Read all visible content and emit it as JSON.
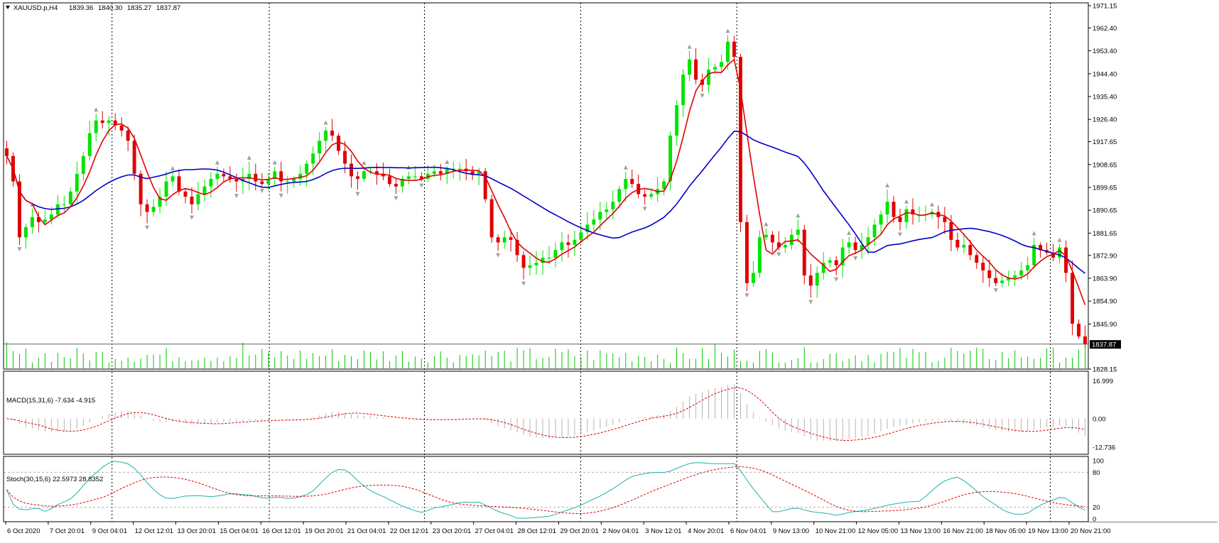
{
  "window": {
    "symbol_label": "XAUUSD.p,H4",
    "ohlc": [
      "1839.36",
      "1840.30",
      "1835.27",
      "1837.87"
    ],
    "current_price_label": "1837.87"
  },
  "colors": {
    "bull": "#00e400",
    "bear": "#e00000",
    "ma_fast": "#e00000",
    "ma_slow": "#0000c8",
    "volume": "#00c800",
    "macd_hist": "#b4b4b4",
    "macd_signal": "#e00000",
    "stoch_main": "#20b2aa",
    "stoch_signal": "#e00000",
    "fractal": "#a0a0a0",
    "grid": "#000000",
    "price_line": "#606060"
  },
  "chart_data": [
    {
      "type": "candlestick",
      "pane": "main",
      "ylim": [
        1828.15,
        1971.15
      ],
      "y_ticks": [
        "1971.15",
        "1962.40",
        "1953.40",
        "1944.40",
        "1935.40",
        "1926.40",
        "1917.65",
        "1908.65",
        "1899.65",
        "1890.65",
        "1881.65",
        "1872.90",
        "1863.90",
        "1854.90",
        "1845.90",
        "1837.87",
        "1828.15"
      ],
      "x_labels": [
        "6 Oct 2020",
        "7 Oct 20:01",
        "9 Oct 04:01",
        "12 Oct 12:01",
        "13 Oct 20:01",
        "15 Oct 04:01",
        "16 Oct 12:01",
        "19 Oct 20:01",
        "21 Oct 04:01",
        "22 Oct 12:01",
        "23 Oct 20:01",
        "27 Oct 04:01",
        "28 Oct 12:01",
        "29 Oct 20:01",
        "2 Nov 04:01",
        "3 Nov 12:01",
        "4 Nov 20:01",
        "6 Nov 04:01",
        "9 Nov 13:00",
        "10 Nov 21:00",
        "12 Nov 05:00",
        "13 Nov 13:00",
        "16 Nov 21:00",
        "18 Nov 05:00",
        "19 Nov 13:00",
        "20 Nov 21:00"
      ],
      "close_series": [
        1912,
        1902,
        1880,
        1884,
        1888,
        1886,
        1887,
        1889,
        1893,
        1893,
        1898,
        1905,
        1912,
        1921,
        1926,
        1925,
        1926,
        1924,
        1922,
        1918,
        1905,
        1893,
        1890,
        1892,
        1896,
        1902,
        1904,
        1898,
        1896,
        1893,
        1897,
        1900,
        1903,
        1905,
        1904,
        1903,
        1902,
        1903,
        1905,
        1902,
        1901,
        1903,
        1906,
        1902,
        1902,
        1903,
        1905,
        1909,
        1913,
        1918,
        1922,
        1920,
        1914,
        1909,
        1904,
        1903,
        1906,
        1906,
        1905,
        1904,
        1901,
        1900,
        1903,
        1904,
        1904,
        1903,
        1905,
        1906,
        1905,
        1907,
        1907,
        1907,
        1906,
        1905,
        1906,
        1895,
        1880,
        1878,
        1880,
        1879,
        1873,
        1868,
        1869,
        1870,
        1872,
        1872,
        1875,
        1878,
        1877,
        1879,
        1882,
        1885,
        1887,
        1890,
        1891,
        1894,
        1899,
        1903,
        1901,
        1897,
        1896,
        1897,
        1899,
        1902,
        1920,
        1932,
        1944,
        1950,
        1942,
        1940,
        1946,
        1947,
        1949,
        1957,
        1951,
        1886,
        1862,
        1866,
        1880,
        1881,
        1878,
        1876,
        1877,
        1881,
        1883,
        1865,
        1861,
        1866,
        1870,
        1871,
        1869,
        1876,
        1878,
        1875,
        1877,
        1880,
        1885,
        1889,
        1894,
        1888,
        1886,
        1891,
        1889,
        1889,
        1889,
        1890,
        1888,
        1886,
        1879,
        1876,
        1877,
        1873,
        1870,
        1867,
        1864,
        1862,
        1863,
        1864,
        1865,
        1867,
        1869,
        1877,
        1875,
        1874,
        1872,
        1876,
        1866,
        1846,
        1841,
        1838
      ],
      "ma_fast_name": "",
      "ma_slow_name": ""
    },
    {
      "type": "histogram",
      "pane": "macd",
      "title": "MACD(15,31,6) -7.634 -4.915",
      "y_ticks": [
        "16.999",
        "0.00",
        "-12.736"
      ],
      "ylim": [
        -15,
        19
      ]
    },
    {
      "type": "line",
      "pane": "stoch",
      "title": "Stoch(30,15,6) 22.5973 28.8352",
      "y_ticks": [
        "100",
        "80",
        "20",
        "0"
      ],
      "ylim": [
        0,
        100
      ],
      "levels": [
        80,
        20
      ]
    }
  ]
}
